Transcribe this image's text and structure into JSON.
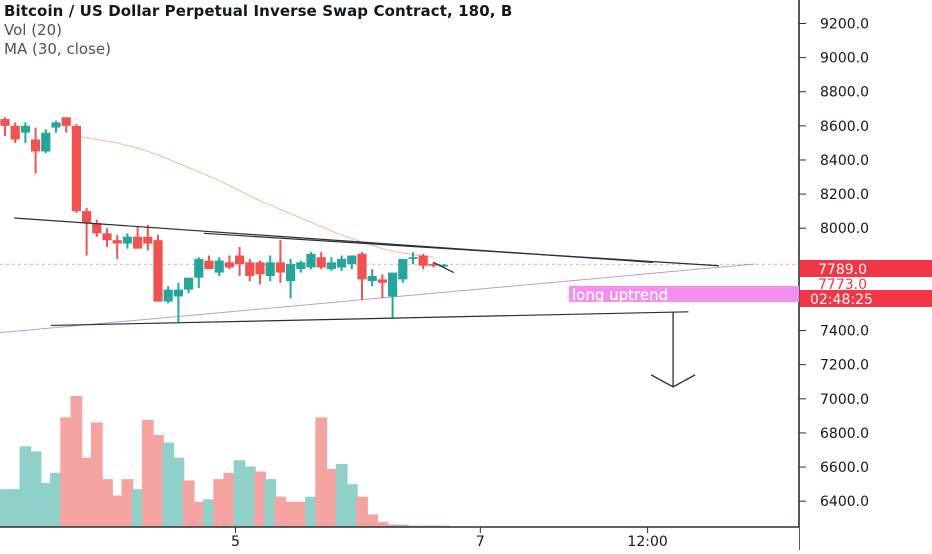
{
  "legend": {
    "title": "Bitcoin / US Dollar Perpetual Inverse Swap Contract, 180, B",
    "volume": "Vol (20)",
    "ma": "MA (30, close)"
  },
  "price_axis": {
    "ticks": [
      "9200.0",
      "9000.0",
      "8800.0",
      "8600.0",
      "8400.0",
      "8200.0",
      "8000.0",
      "7400.0",
      "7200.0",
      "7000.0",
      "6800.0",
      "6600.0",
      "6400.0"
    ],
    "tick_values": [
      9200,
      9000,
      8800,
      8600,
      8400,
      8200,
      8000,
      7400,
      7200,
      7000,
      6800,
      6600,
      6400
    ],
    "last_price": "7789.0",
    "marker_price": "7773.0",
    "countdown": "02:48:25"
  },
  "time_axis": {
    "ticks": [
      {
        "label": "5",
        "bar": 22.6
      },
      {
        "label": "7",
        "bar": 46.6
      },
      {
        "label": "12:00",
        "bar": 63.0
      }
    ]
  },
  "annotation": {
    "text": "long uptrend"
  },
  "colors": {
    "up": "#26a69a",
    "down": "#ef5350",
    "up_vol": "#8fd0c9",
    "down_vol": "#f5a3a1",
    "ma": "#f7b88d",
    "trendline": "#2a2e39",
    "uptrend": "#b39ddb",
    "label_bg": "#f23645",
    "annotation_bg": "#f48fef"
  },
  "chart_data": {
    "type": "candlestick",
    "title": "Bitcoin / US Dollar Perpetual Inverse Swap Contract, 180, B",
    "interval": "180",
    "xlabel": "",
    "ylabel": "",
    "ylim": [
      6300,
      9300
    ],
    "grid": false,
    "volume_ylim": [
      0,
      100
    ],
    "ohlc": [
      [
        8640,
        8650,
        8540,
        8600
      ],
      [
        8600,
        8620,
        8500,
        8520
      ],
      [
        8560,
        8620,
        8500,
        8600
      ],
      [
        8520,
        8590,
        8320,
        8450
      ],
      [
        8450,
        8580,
        8440,
        8560
      ],
      [
        8590,
        8630,
        8560,
        8620
      ],
      [
        8650,
        8650,
        8560,
        8600
      ],
      [
        8600,
        8610,
        8090,
        8100
      ],
      [
        8100,
        8120,
        7840,
        8030
      ],
      [
        8030,
        8050,
        7950,
        7970
      ],
      [
        7970,
        8000,
        7890,
        7930
      ],
      [
        7930,
        7960,
        7820,
        7910
      ],
      [
        7910,
        7970,
        7880,
        7950
      ],
      [
        7950,
        8010,
        7890,
        7880
      ],
      [
        7950,
        8020,
        7870,
        7910
      ],
      [
        7930,
        7960,
        7570,
        7570
      ],
      [
        7570,
        7660,
        7560,
        7640
      ],
      [
        7600,
        7680,
        7450,
        7640
      ],
      [
        7640,
        7710,
        7620,
        7710
      ],
      [
        7710,
        7830,
        7650,
        7820
      ],
      [
        7810,
        7840,
        7760,
        7760
      ],
      [
        7740,
        7830,
        7720,
        7810
      ],
      [
        7800,
        7840,
        7760,
        7770
      ],
      [
        7840,
        7890,
        7720,
        7790
      ],
      [
        7800,
        7820,
        7690,
        7720
      ],
      [
        7800,
        7810,
        7670,
        7730
      ],
      [
        7720,
        7840,
        7690,
        7800
      ],
      [
        7800,
        7930,
        7680,
        7740
      ],
      [
        7690,
        7820,
        7590,
        7790
      ],
      [
        7760,
        7810,
        7740,
        7800
      ],
      [
        7770,
        7860,
        7760,
        7850
      ],
      [
        7830,
        7860,
        7760,
        7770
      ],
      [
        7760,
        7830,
        7750,
        7800
      ],
      [
        7770,
        7840,
        7750,
        7820
      ],
      [
        7790,
        7840,
        7760,
        7840
      ],
      [
        7850,
        7860,
        7580,
        7700
      ],
      [
        7690,
        7760,
        7660,
        7720
      ],
      [
        7700,
        7730,
        7590,
        7680
      ],
      [
        7600,
        7710,
        7470,
        7740
      ],
      [
        7700,
        7820,
        7680,
        7820
      ],
      [
        7820,
        7860,
        7790,
        7830
      ],
      [
        7840,
        7850,
        7760,
        7780
      ],
      [
        7790,
        7800,
        7770,
        7780
      ],
      [
        7780,
        7790,
        7770,
        7785
      ]
    ],
    "volume": [
      30,
      30,
      64,
      60,
      35,
      43,
      87,
      104,
      55,
      83,
      38,
      25,
      38,
      30,
      85,
      73,
      67,
      55,
      37,
      20,
      22,
      38,
      43,
      53,
      48,
      44,
      38,
      24,
      20,
      20,
      24,
      87,
      46,
      50,
      34,
      24,
      10,
      4,
      2,
      2,
      1,
      1,
      1,
      1
    ],
    "volume_up": [
      true,
      true,
      true,
      true,
      true,
      true,
      false,
      false,
      false,
      false,
      false,
      false,
      false,
      true,
      false,
      false,
      true,
      true,
      false,
      false,
      true,
      false,
      false,
      true,
      true,
      false,
      true,
      false,
      false,
      false,
      true,
      false,
      false,
      true,
      true,
      false,
      false,
      false,
      false,
      true,
      false,
      false,
      true,
      false
    ],
    "ma30": [
      [
        7.0,
        8540
      ],
      [
        9.0,
        8520
      ],
      [
        11.0,
        8500
      ],
      [
        13.0,
        8470
      ],
      [
        15.0,
        8430
      ],
      [
        17.0,
        8380
      ],
      [
        19.0,
        8330
      ],
      [
        21.0,
        8280
      ],
      [
        23.0,
        8220
      ],
      [
        25.0,
        8160
      ],
      [
        27.0,
        8110
      ],
      [
        29.0,
        8060
      ],
      [
        31.0,
        8010
      ],
      [
        33.0,
        7960
      ],
      [
        35.0,
        7920
      ],
      [
        37.0,
        7880
      ],
      [
        38.5,
        7860
      ],
      [
        40.5,
        7840
      ],
      [
        42.0,
        7830
      ]
    ],
    "trendlines": [
      {
        "from": [
          0.9,
          8060
        ],
        "to": [
          63.5,
          7800
        ],
        "color": "#2a2e39"
      },
      {
        "from": [
          19.5,
          7970
        ],
        "to": [
          70.0,
          7780
        ],
        "color": "#2a2e39"
      },
      {
        "from": [
          4.5,
          7430
        ],
        "to": [
          67.0,
          7510
        ],
        "color": "#2a2e39"
      },
      {
        "from": [
          -1.0,
          7385
        ],
        "to": [
          73.5,
          7790
        ],
        "color": "#b39ddb"
      },
      {
        "from": [
          42.0,
          7800
        ],
        "to": [
          44.0,
          7740
        ],
        "color": "#2a2e39"
      }
    ],
    "target_arrow": {
      "x": 65.5,
      "from": 7510,
      "to": 7070
    }
  }
}
